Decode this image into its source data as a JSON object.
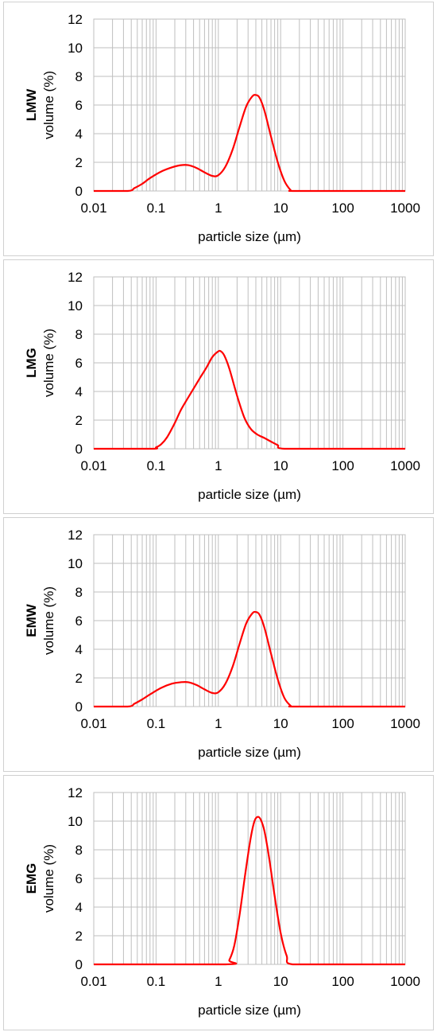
{
  "chart_data": [
    {
      "type": "line",
      "title": "",
      "xlabel": "particle size (µm)",
      "ylabel_top": "LMW",
      "ylabel": "volume (%)",
      "x_scale": "log",
      "xlim": [
        0.01,
        1000
      ],
      "ylim": [
        0,
        12
      ],
      "x_ticks": [
        "0.01",
        "0.1",
        "1",
        "10",
        "100",
        "1000"
      ],
      "y_ticks": [
        "0",
        "2",
        "4",
        "6",
        "8",
        "10",
        "12"
      ],
      "grid": true,
      "line_color": "#ff0000",
      "series": [
        {
          "x": [
            0.01,
            0.035,
            0.045,
            0.06,
            0.08,
            0.12,
            0.18,
            0.25,
            0.33,
            0.45,
            0.6,
            0.8,
            1.0,
            1.3,
            1.7,
            2.2,
            2.8,
            3.5,
            4.0,
            4.6,
            5.5,
            7.0,
            9.0,
            11.5,
            14.5,
            16,
            100,
            1000
          ],
          "y": [
            0,
            0,
            0.2,
            0.5,
            0.9,
            1.35,
            1.65,
            1.8,
            1.8,
            1.6,
            1.3,
            1.05,
            1.1,
            1.7,
            2.9,
            4.5,
            5.9,
            6.6,
            6.7,
            6.5,
            5.6,
            3.8,
            2.0,
            0.7,
            0.05,
            0,
            0,
            0
          ]
        }
      ]
    },
    {
      "type": "line",
      "title": "",
      "xlabel": "particle size (µm)",
      "ylabel_top": "LMG",
      "ylabel": "volume (%)",
      "x_scale": "log",
      "xlim": [
        0.01,
        1000
      ],
      "ylim": [
        0,
        12
      ],
      "x_ticks": [
        "0.01",
        "0.1",
        "1",
        "10",
        "100",
        "1000"
      ],
      "y_ticks": [
        "0",
        "2",
        "4",
        "6",
        "8",
        "10",
        "12"
      ],
      "grid": true,
      "line_color": "#ff0000",
      "series": [
        {
          "x": [
            0.01,
            0.085,
            0.1,
            0.12,
            0.15,
            0.2,
            0.25,
            0.32,
            0.4,
            0.5,
            0.65,
            0.8,
            1.0,
            1.1,
            1.25,
            1.5,
            2.0,
            2.6,
            3.3,
            4.2,
            5.5,
            7.0,
            9.0,
            11.5,
            100,
            1000
          ],
          "y": [
            0,
            0,
            0.1,
            0.3,
            0.8,
            1.8,
            2.7,
            3.5,
            4.2,
            4.9,
            5.7,
            6.4,
            6.8,
            6.8,
            6.5,
            5.6,
            3.7,
            2.2,
            1.4,
            1.0,
            0.75,
            0.5,
            0.25,
            0,
            0,
            0
          ]
        }
      ]
    },
    {
      "type": "line",
      "title": "",
      "xlabel": "particle size (µm)",
      "ylabel_top": "EMW",
      "ylabel": "volume (%)",
      "x_scale": "log",
      "xlim": [
        0.01,
        1000
      ],
      "ylim": [
        0,
        12
      ],
      "x_ticks": [
        "0.01",
        "0.1",
        "1",
        "10",
        "100",
        "1000"
      ],
      "y_ticks": [
        "0",
        "2",
        "4",
        "6",
        "8",
        "10",
        "12"
      ],
      "grid": true,
      "line_color": "#ff0000",
      "series": [
        {
          "x": [
            0.01,
            0.035,
            0.045,
            0.06,
            0.08,
            0.12,
            0.18,
            0.25,
            0.33,
            0.45,
            0.6,
            0.8,
            1.0,
            1.3,
            1.7,
            2.2,
            2.8,
            3.5,
            4.0,
            4.6,
            5.5,
            7.0,
            9.0,
            11.5,
            14.5,
            16,
            100,
            1000
          ],
          "y": [
            0,
            0,
            0.2,
            0.5,
            0.85,
            1.3,
            1.6,
            1.7,
            1.7,
            1.5,
            1.2,
            0.95,
            1.0,
            1.6,
            2.8,
            4.4,
            5.8,
            6.5,
            6.6,
            6.4,
            5.5,
            3.7,
            1.9,
            0.6,
            0.05,
            0,
            0,
            0
          ]
        }
      ]
    },
    {
      "type": "line",
      "title": "",
      "xlabel": "particle size (µm)",
      "ylabel_top": "EMG",
      "ylabel": "volume (%)",
      "x_scale": "log",
      "xlim": [
        0.01,
        1000
      ],
      "ylim": [
        0,
        12
      ],
      "x_ticks": [
        "0.01",
        "0.1",
        "1",
        "10",
        "100",
        "1000"
      ],
      "y_ticks": [
        "0",
        "2",
        "4",
        "6",
        "8",
        "10",
        "12"
      ],
      "grid": true,
      "line_color": "#ff0000",
      "series": [
        {
          "x": [
            0.01,
            1.3,
            1.5,
            1.8,
            2.2,
            2.7,
            3.3,
            3.8,
            4.3,
            4.8,
            5.5,
            6.5,
            8.0,
            10.0,
            12.5,
            15.5,
            100,
            1000
          ],
          "y": [
            0,
            0,
            0.3,
            1.3,
            3.5,
            6.3,
            8.8,
            10.0,
            10.3,
            10.1,
            9.3,
            7.5,
            4.8,
            2.2,
            0.6,
            0,
            0,
            0
          ]
        }
      ]
    }
  ]
}
